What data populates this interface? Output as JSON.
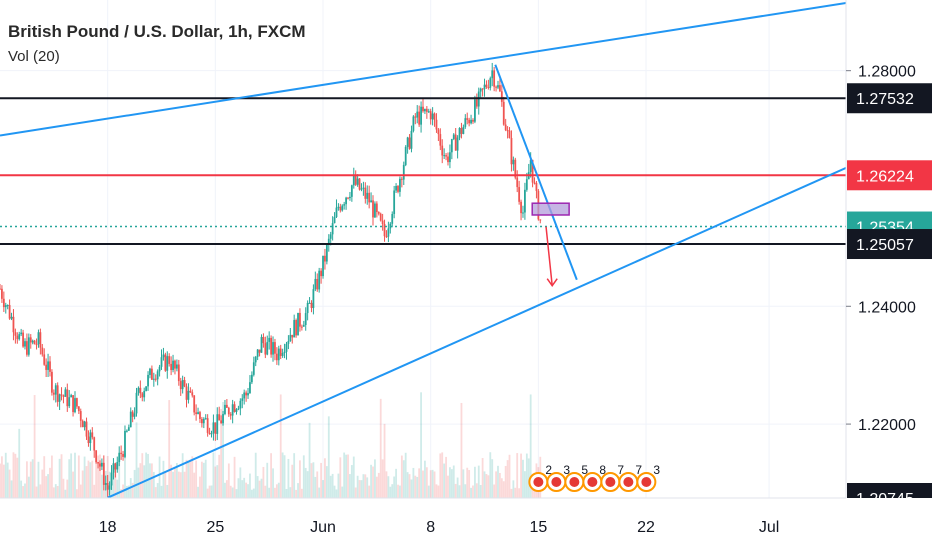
{
  "legend": {
    "title": "British Pound / U.S. Dollar, 1h, FXCM",
    "volume": "Vol (20)"
  },
  "chart_data": {
    "type": "candlestick",
    "instrument": "British Pound / U.S. Dollar",
    "interval": "1h",
    "source": "FXCM",
    "ylim": [
      1.20745,
      1.292
    ],
    "y_ticks": [
      "1.28000",
      "1.24000",
      "1.22000"
    ],
    "x_ticks": [
      {
        "label": "18",
        "x": 18
      },
      {
        "label": "25",
        "x": 25
      },
      {
        "label": "Jun",
        "x": 32
      },
      {
        "label": "8",
        "x": 39
      },
      {
        "label": "15",
        "x": 46
      },
      {
        "label": "22",
        "x": 53
      },
      {
        "label": "Jul",
        "x": 61
      }
    ],
    "xlim": [
      11.0,
      66.0
    ],
    "price_path": [
      [
        11.0,
        1.243
      ],
      [
        12.5,
        1.233
      ],
      [
        13.5,
        1.234
      ],
      [
        14.5,
        1.226
      ],
      [
        16.0,
        1.223
      ],
      [
        17.0,
        1.217
      ],
      [
        18.0,
        1.209
      ],
      [
        19.0,
        1.216
      ],
      [
        20.0,
        1.225
      ],
      [
        21.0,
        1.229
      ],
      [
        22.0,
        1.231
      ],
      [
        23.0,
        1.226
      ],
      [
        24.0,
        1.221
      ],
      [
        25.0,
        1.2195
      ],
      [
        26.0,
        1.223
      ],
      [
        27.0,
        1.225
      ],
      [
        28.0,
        1.234
      ],
      [
        29.0,
        1.232
      ],
      [
        30.0,
        1.236
      ],
      [
        31.0,
        1.239
      ],
      [
        32.0,
        1.247
      ],
      [
        33.0,
        1.257
      ],
      [
        34.0,
        1.261
      ],
      [
        35.0,
        1.258
      ],
      [
        36.0,
        1.252
      ],
      [
        37.0,
        1.262
      ],
      [
        38.0,
        1.272
      ],
      [
        39.0,
        1.273
      ],
      [
        40.0,
        1.265
      ],
      [
        41.0,
        1.27
      ],
      [
        42.0,
        1.274
      ],
      [
        43.0,
        1.28
      ],
      [
        43.5,
        1.276
      ],
      [
        44.0,
        1.269
      ],
      [
        44.5,
        1.262
      ],
      [
        45.0,
        1.256
      ],
      [
        45.5,
        1.265
      ],
      [
        45.8,
        1.259
      ],
      [
        46.2,
        1.2535
      ]
    ],
    "levels": [
      {
        "name": "level-1.27532",
        "value": 1.27532,
        "color": "#131722",
        "badge": "1.27532",
        "badge_bg": "#131722",
        "style": "solid"
      },
      {
        "name": "level-1.26224",
        "value": 1.26224,
        "color": "#f23645",
        "badge": "1.26224",
        "badge_bg": "#f23645",
        "style": "solid"
      },
      {
        "name": "level-1.25354",
        "value": 1.25354,
        "color": "#26a69a",
        "badge": "1.25354",
        "badge_bg": "#26a69a",
        "style": "dotted"
      },
      {
        "name": "level-1.25057",
        "value": 1.25057,
        "color": "#131722",
        "badge": "1.25057",
        "badge_bg": "#131722",
        "style": "solid"
      },
      {
        "name": "level-1.20745",
        "value": 1.20745,
        "color": "#131722",
        "badge": "1.20745",
        "badge_bg": "#131722",
        "style": "none"
      }
    ],
    "trendlines": [
      {
        "name": "upper-channel-line",
        "from": [
          11.0,
          1.269
        ],
        "to": [
          66.0,
          1.2915
        ],
        "color": "#2196f3"
      },
      {
        "name": "lower-channel-line",
        "from": [
          18.0,
          1.2075
        ],
        "to": [
          66.0,
          1.2635
        ],
        "color": "#2196f3"
      },
      {
        "name": "descending-trendline",
        "from": [
          43.2,
          1.281
        ],
        "to": [
          48.5,
          1.2445
        ],
        "color": "#2196f3"
      }
    ],
    "zone": {
      "name": "target-zone",
      "x0": 45.6,
      "x1": 48.0,
      "y0": 1.2555,
      "y1": 1.2575,
      "color": "#b39ddb"
    },
    "arrow": {
      "name": "projection-arrow",
      "from": [
        46.5,
        1.2535
      ],
      "to": [
        46.9,
        1.2435
      ],
      "color": "#f23645"
    },
    "event_markers": [
      "2",
      "3",
      "5",
      "8",
      "7",
      "7",
      "3"
    ],
    "colors": {
      "up": "#26a69a",
      "down": "#ef5350",
      "grid": "#f0f3fa",
      "axis_text": "#131722"
    }
  }
}
